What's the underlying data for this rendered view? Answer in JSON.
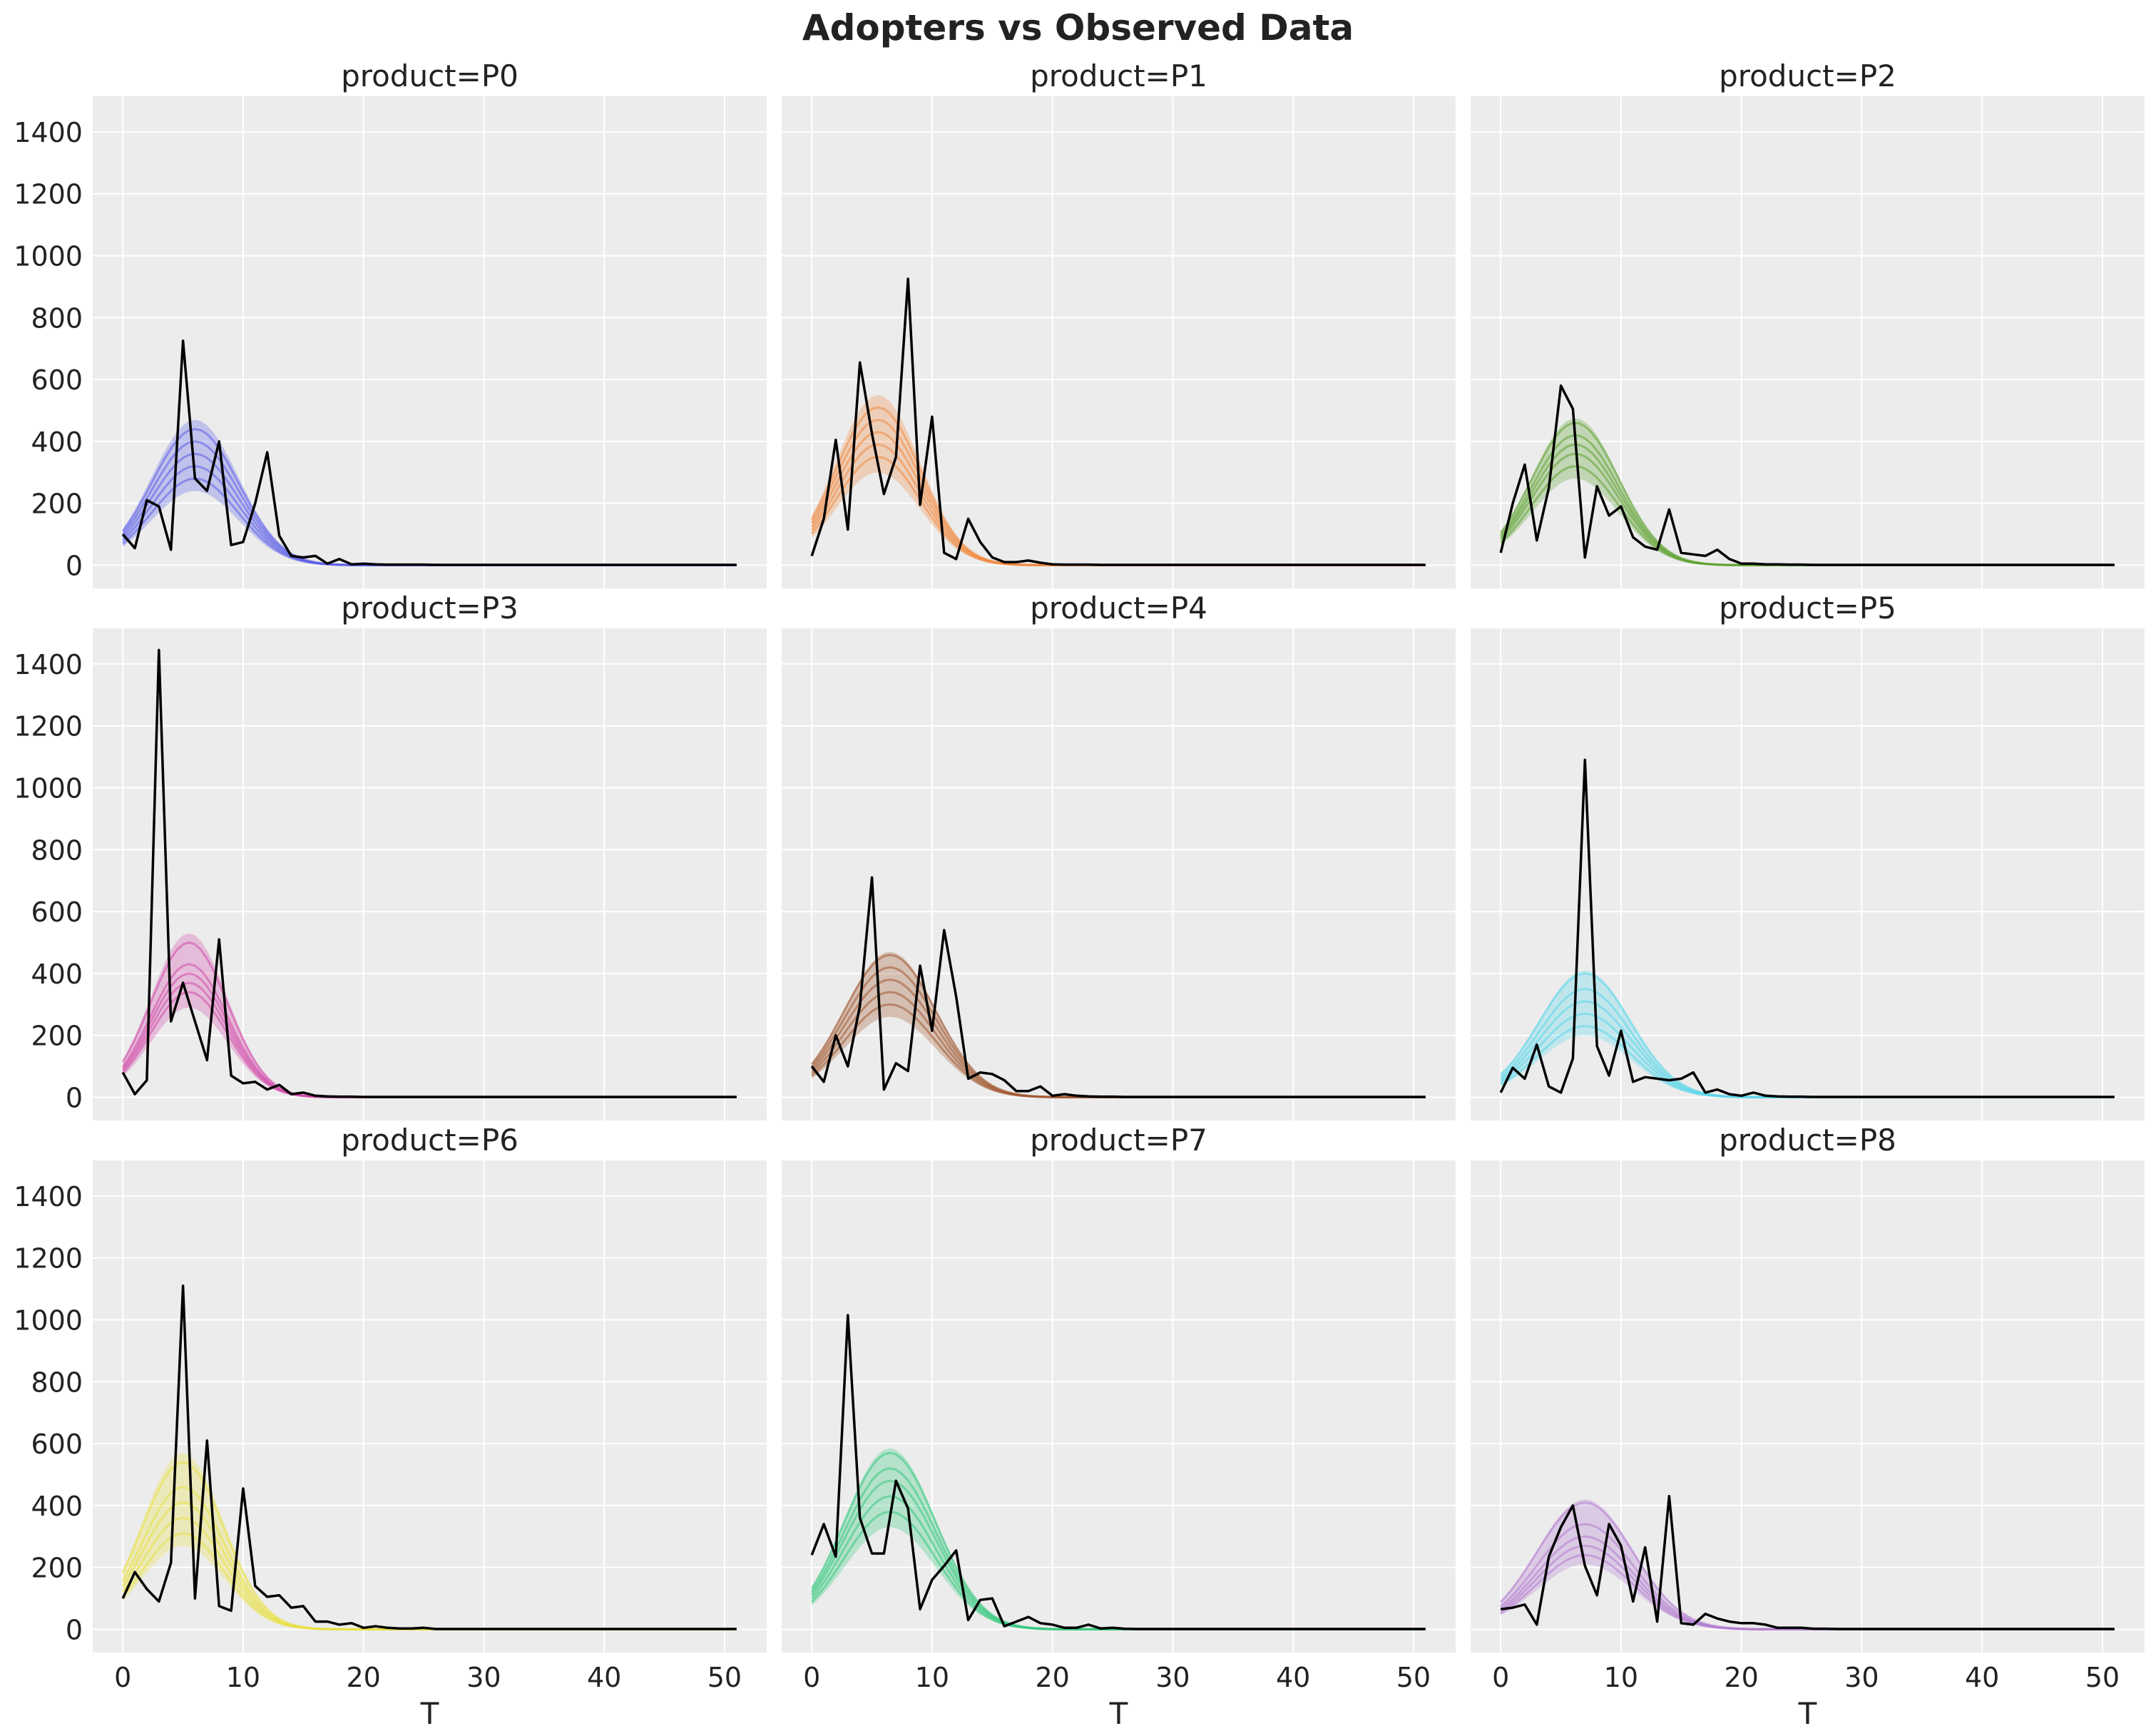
{
  "figure": {
    "title": "Adopters vs Observed Data"
  },
  "chart_data": {
    "type": "line",
    "title": "Adopters vs Observed Data",
    "xlabel": "T",
    "ylabel": "",
    "xlim": [
      -2.5,
      53.5
    ],
    "ylim": [
      -75,
      1515
    ],
    "xticks": [
      0,
      10,
      20,
      30,
      40,
      50
    ],
    "yticks": [
      0,
      200,
      400,
      600,
      800,
      1000,
      1200,
      1400
    ],
    "grid": true,
    "layout": "3x3 grid, shared axes",
    "panels": [
      {
        "title": "product=P0",
        "color": "#5b5fe8",
        "fit_curve": {
          "peak": 6,
          "width": 3.6,
          "heights": [
            280,
            320,
            360,
            400,
            440
          ]
        },
        "band": {
          "lower": 240,
          "upper": 470
        },
        "observed": {
          "name": "observed",
          "x": [
            0,
            1,
            2,
            3,
            4,
            5,
            6,
            7,
            8,
            9,
            10,
            11,
            12,
            13,
            14,
            15,
            16,
            17,
            18,
            19,
            20,
            21,
            22,
            23,
            24,
            25,
            26,
            27,
            28,
            29,
            30,
            31,
            32,
            33,
            34,
            35,
            36,
            37,
            38,
            39,
            40,
            41,
            42,
            43,
            44,
            45,
            46,
            47,
            48,
            49,
            50,
            51
          ],
          "y": [
            100,
            55,
            210,
            190,
            50,
            725,
            280,
            240,
            400,
            65,
            75,
            200,
            365,
            95,
            30,
            25,
            30,
            5,
            20,
            3,
            5,
            3,
            2,
            2,
            2,
            2,
            1,
            1,
            1,
            1,
            1,
            1,
            1,
            1,
            1,
            1,
            1,
            1,
            1,
            1,
            1,
            1,
            1,
            1,
            1,
            1,
            1,
            1,
            1,
            1,
            1,
            1
          ]
        }
      },
      {
        "title": "product=P1",
        "color": "#f0883e",
        "fit_curve": {
          "peak": 5.5,
          "width": 3.5,
          "heights": [
            350,
            390,
            430,
            470,
            510
          ]
        },
        "band": {
          "lower": 300,
          "upper": 550
        },
        "observed": {
          "name": "observed",
          "x": [
            0,
            1,
            2,
            3,
            4,
            5,
            6,
            7,
            8,
            9,
            10,
            11,
            12,
            13,
            14,
            15,
            16,
            17,
            18,
            19,
            20,
            21,
            22,
            23,
            24,
            25,
            26,
            27,
            28,
            29,
            30,
            31,
            32,
            33,
            34,
            35,
            36,
            37,
            38,
            39,
            40,
            41,
            42,
            43,
            44,
            45,
            46,
            47,
            48,
            49,
            50,
            51
          ],
          "y": [
            30,
            150,
            405,
            115,
            655,
            425,
            230,
            350,
            925,
            195,
            480,
            40,
            20,
            150,
            75,
            25,
            10,
            10,
            15,
            8,
            3,
            2,
            2,
            2,
            1,
            1,
            1,
            1,
            1,
            1,
            1,
            1,
            1,
            1,
            1,
            1,
            1,
            1,
            1,
            1,
            1,
            1,
            1,
            1,
            1,
            1,
            1,
            1,
            1,
            1,
            1,
            1
          ]
        }
      },
      {
        "title": "product=P2",
        "color": "#5ea332",
        "fit_curve": {
          "peak": 6.2,
          "width": 3.6,
          "heights": [
            320,
            360,
            390,
            420,
            460
          ]
        },
        "band": {
          "lower": 280,
          "upper": 475
        },
        "observed": {
          "name": "observed",
          "x": [
            0,
            1,
            2,
            3,
            4,
            5,
            6,
            7,
            8,
            9,
            10,
            11,
            12,
            13,
            14,
            15,
            16,
            17,
            18,
            19,
            20,
            21,
            22,
            23,
            24,
            25,
            26,
            27,
            28,
            29,
            30,
            31,
            32,
            33,
            34,
            35,
            36,
            37,
            38,
            39,
            40,
            41,
            42,
            43,
            44,
            45,
            46,
            47,
            48,
            49,
            50,
            51
          ],
          "y": [
            40,
            200,
            325,
            80,
            250,
            580,
            505,
            25,
            255,
            160,
            190,
            90,
            60,
            50,
            180,
            40,
            35,
            30,
            50,
            20,
            5,
            5,
            3,
            3,
            2,
            2,
            1,
            1,
            1,
            1,
            1,
            1,
            1,
            1,
            1,
            1,
            1,
            1,
            1,
            1,
            1,
            1,
            1,
            1,
            1,
            1,
            1,
            1,
            1,
            1,
            1,
            1
          ]
        }
      },
      {
        "title": "product=P3",
        "color": "#d24aaa",
        "fit_curve": {
          "peak": 5.5,
          "width": 3.2,
          "heights": [
            340,
            370,
            400,
            430,
            500
          ]
        },
        "band": {
          "lower": 290,
          "upper": 530
        },
        "observed": {
          "name": "observed",
          "x": [
            0,
            1,
            2,
            3,
            4,
            5,
            6,
            7,
            8,
            9,
            10,
            11,
            12,
            13,
            14,
            15,
            16,
            17,
            18,
            19,
            20,
            21,
            22,
            23,
            24,
            25,
            26,
            27,
            28,
            29,
            30,
            31,
            32,
            33,
            34,
            35,
            36,
            37,
            38,
            39,
            40,
            41,
            42,
            43,
            44,
            45,
            46,
            47,
            48,
            49,
            50,
            51
          ],
          "y": [
            80,
            10,
            55,
            1445,
            245,
            370,
            245,
            120,
            510,
            70,
            45,
            50,
            25,
            40,
            10,
            15,
            5,
            3,
            2,
            2,
            1,
            1,
            1,
            1,
            1,
            1,
            1,
            1,
            1,
            1,
            1,
            1,
            1,
            1,
            1,
            1,
            1,
            1,
            1,
            1,
            1,
            1,
            1,
            1,
            1,
            1,
            1,
            1,
            1,
            1,
            1,
            1
          ]
        }
      },
      {
        "title": "product=P4",
        "color": "#a0572d",
        "fit_curve": {
          "peak": 6.5,
          "width": 3.8,
          "heights": [
            300,
            340,
            380,
            420,
            460
          ]
        },
        "band": {
          "lower": 260,
          "upper": 470
        },
        "observed": {
          "name": "observed",
          "x": [
            0,
            1,
            2,
            3,
            4,
            5,
            6,
            7,
            8,
            9,
            10,
            11,
            12,
            13,
            14,
            15,
            16,
            17,
            18,
            19,
            20,
            21,
            22,
            23,
            24,
            25,
            26,
            27,
            28,
            29,
            30,
            31,
            32,
            33,
            34,
            35,
            36,
            37,
            38,
            39,
            40,
            41,
            42,
            43,
            44,
            45,
            46,
            47,
            48,
            49,
            50,
            51
          ],
          "y": [
            100,
            50,
            200,
            100,
            295,
            710,
            25,
            110,
            85,
            425,
            215,
            540,
            325,
            60,
            80,
            75,
            55,
            20,
            20,
            35,
            5,
            10,
            5,
            3,
            2,
            2,
            1,
            1,
            1,
            1,
            1,
            1,
            1,
            1,
            1,
            1,
            1,
            1,
            1,
            1,
            1,
            1,
            1,
            1,
            1,
            1,
            1,
            1,
            1,
            1,
            1,
            1
          ]
        }
      },
      {
        "title": "product=P5",
        "color": "#5ad6ea",
        "fit_curve": {
          "peak": 7,
          "width": 3.8,
          "heights": [
            230,
            270,
            310,
            350,
            400
          ]
        },
        "band": {
          "lower": 200,
          "upper": 410
        },
        "observed": {
          "name": "observed",
          "x": [
            0,
            1,
            2,
            3,
            4,
            5,
            6,
            7,
            8,
            9,
            10,
            11,
            12,
            13,
            14,
            15,
            16,
            17,
            18,
            19,
            20,
            21,
            22,
            23,
            24,
            25,
            26,
            27,
            28,
            29,
            30,
            31,
            32,
            33,
            34,
            35,
            36,
            37,
            38,
            39,
            40,
            41,
            42,
            43,
            44,
            45,
            46,
            47,
            48,
            49,
            50,
            51
          ],
          "y": [
            15,
            95,
            60,
            170,
            35,
            15,
            125,
            1090,
            165,
            70,
            215,
            50,
            65,
            60,
            55,
            60,
            80,
            15,
            25,
            10,
            5,
            15,
            5,
            3,
            2,
            2,
            1,
            1,
            1,
            1,
            1,
            1,
            1,
            1,
            1,
            1,
            1,
            1,
            1,
            1,
            1,
            1,
            1,
            1,
            1,
            1,
            1,
            1,
            1,
            1,
            1,
            1
          ]
        }
      },
      {
        "title": "product=P6",
        "color": "#e8e043",
        "fit_curve": {
          "peak": 5,
          "width": 3.4,
          "heights": [
            310,
            360,
            410,
            460,
            540
          ]
        },
        "band": {
          "lower": 270,
          "upper": 570
        },
        "observed": {
          "name": "observed",
          "x": [
            0,
            1,
            2,
            3,
            4,
            5,
            6,
            7,
            8,
            9,
            10,
            11,
            12,
            13,
            14,
            15,
            16,
            17,
            18,
            19,
            20,
            21,
            22,
            23,
            24,
            25,
            26,
            27,
            28,
            29,
            30,
            31,
            32,
            33,
            34,
            35,
            36,
            37,
            38,
            39,
            40,
            41,
            42,
            43,
            44,
            45,
            46,
            47,
            48,
            49,
            50,
            51
          ],
          "y": [
            100,
            185,
            130,
            90,
            215,
            1110,
            100,
            610,
            75,
            60,
            455,
            140,
            105,
            110,
            70,
            75,
            25,
            25,
            15,
            20,
            5,
            10,
            5,
            3,
            3,
            5,
            1,
            1,
            1,
            1,
            1,
            1,
            1,
            1,
            1,
            1,
            1,
            1,
            1,
            1,
            1,
            1,
            1,
            1,
            1,
            1,
            1,
            1,
            1,
            1,
            1,
            1
          ]
        }
      },
      {
        "title": "product=P7",
        "color": "#35c97e",
        "fit_curve": {
          "peak": 6.5,
          "width": 3.8,
          "heights": [
            380,
            430,
            480,
            520,
            570
          ]
        },
        "band": {
          "lower": 330,
          "upper": 585
        },
        "observed": {
          "name": "observed",
          "x": [
            0,
            1,
            2,
            3,
            4,
            5,
            6,
            7,
            8,
            9,
            10,
            11,
            12,
            13,
            14,
            15,
            16,
            17,
            18,
            19,
            20,
            21,
            22,
            23,
            24,
            25,
            26,
            27,
            28,
            29,
            30,
            31,
            32,
            33,
            34,
            35,
            36,
            37,
            38,
            39,
            40,
            41,
            42,
            43,
            44,
            45,
            46,
            47,
            48,
            49,
            50,
            51
          ],
          "y": [
            240,
            340,
            235,
            1015,
            360,
            245,
            245,
            480,
            390,
            65,
            160,
            205,
            255,
            30,
            95,
            100,
            10,
            25,
            40,
            20,
            15,
            5,
            5,
            15,
            3,
            5,
            2,
            1,
            1,
            1,
            1,
            1,
            1,
            1,
            1,
            1,
            1,
            1,
            1,
            1,
            1,
            1,
            1,
            1,
            1,
            1,
            1,
            1,
            1,
            1,
            1,
            1
          ]
        }
      },
      {
        "title": "product=P8",
        "color": "#b27bcf",
        "fit_curve": {
          "peak": 7,
          "width": 4.0,
          "heights": [
            240,
            270,
            300,
            340,
            410
          ]
        },
        "band": {
          "lower": 210,
          "upper": 420
        },
        "observed": {
          "name": "observed",
          "x": [
            0,
            1,
            2,
            3,
            4,
            5,
            6,
            7,
            8,
            9,
            10,
            11,
            12,
            13,
            14,
            15,
            16,
            17,
            18,
            19,
            20,
            21,
            22,
            23,
            24,
            25,
            26,
            27,
            28,
            29,
            30,
            31,
            32,
            33,
            34,
            35,
            36,
            37,
            38,
            39,
            40,
            41,
            42,
            43,
            44,
            45,
            46,
            47,
            48,
            49,
            50,
            51
          ],
          "y": [
            65,
            70,
            80,
            15,
            235,
            330,
            400,
            205,
            110,
            340,
            270,
            90,
            265,
            25,
            430,
            20,
            15,
            50,
            35,
            25,
            20,
            20,
            15,
            5,
            5,
            5,
            2,
            2,
            1,
            1,
            1,
            1,
            1,
            1,
            1,
            1,
            1,
            1,
            1,
            1,
            1,
            1,
            1,
            1,
            1,
            1,
            1,
            1,
            1,
            1,
            1,
            1
          ]
        }
      }
    ]
  }
}
